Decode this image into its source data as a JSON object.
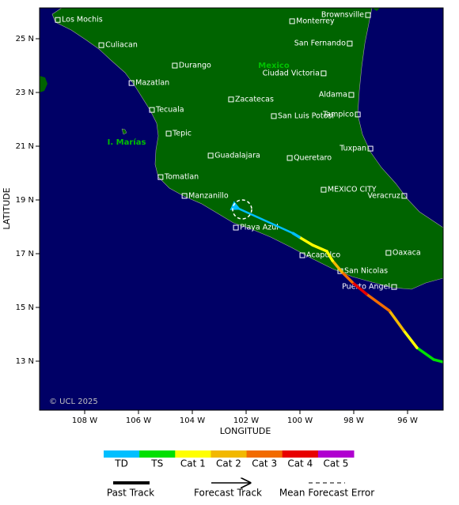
{
  "map": {
    "x_axis": {
      "label": "LONGITUDE",
      "ticks": [
        {
          "value": 108,
          "label": "108 W"
        },
        {
          "value": 106,
          "label": "106 W"
        },
        {
          "value": 104,
          "label": "104 W"
        },
        {
          "value": 102,
          "label": "102 W"
        },
        {
          "value": 100,
          "label": "100 W"
        },
        {
          "value": 98,
          "label": "98 W"
        },
        {
          "value": 96,
          "label": "96 W"
        }
      ]
    },
    "y_axis": {
      "label": "LATITUDE",
      "ticks": [
        {
          "value": 25,
          "label": "25 N"
        },
        {
          "value": 23,
          "label": "23 N"
        },
        {
          "value": 21,
          "label": "21 N"
        },
        {
          "value": 19,
          "label": "19 N"
        },
        {
          "value": 17,
          "label": "17 N"
        },
        {
          "value": 15,
          "label": "15 N"
        },
        {
          "value": 13,
          "label": "13 N"
        }
      ]
    },
    "regions": [
      {
        "label": "Mexico",
        "lon": 100.97,
        "lat": 24.0
      },
      {
        "label": "I. Marías",
        "lon": 106.44,
        "lat": 21.15
      }
    ],
    "cities": [
      {
        "name": "Los Mochis",
        "lon": 109.0,
        "lat": 25.7
      },
      {
        "name": "Culiacan",
        "lon": 107.38,
        "lat": 24.76
      },
      {
        "name": "Durango",
        "lon": 104.65,
        "lat": 24.0
      },
      {
        "name": "Mazatlan",
        "lon": 106.26,
        "lat": 23.35
      },
      {
        "name": "Tecuala",
        "lon": 105.5,
        "lat": 22.35
      },
      {
        "name": "Tepic",
        "lon": 104.88,
        "lat": 21.47
      },
      {
        "name": "Zacatecas",
        "lon": 102.56,
        "lat": 22.74
      },
      {
        "name": "San Luis Potosi",
        "lon": 100.97,
        "lat": 22.12
      },
      {
        "name": "Guadalajara",
        "lon": 103.32,
        "lat": 20.65
      },
      {
        "name": "Tomatlan",
        "lon": 105.18,
        "lat": 19.85
      },
      {
        "name": "Manzanillo",
        "lon": 104.29,
        "lat": 19.15
      },
      {
        "name": "Playa Azul",
        "lon": 102.38,
        "lat": 17.97
      },
      {
        "name": "Queretaro",
        "lon": 100.38,
        "lat": 20.56
      },
      {
        "name": "MEXICO CITY",
        "lon": 99.12,
        "lat": 19.38
      },
      {
        "name": "Veracruz",
        "lon": 96.12,
        "lat": 19.15
      },
      {
        "name": "Acapulco",
        "lon": 99.91,
        "lat": 16.94
      },
      {
        "name": "San Nicolas",
        "lon": 98.5,
        "lat": 16.35
      },
      {
        "name": "Puerto Angel",
        "lon": 96.5,
        "lat": 15.76
      },
      {
        "name": "Oaxaca",
        "lon": 96.71,
        "lat": 17.03
      },
      {
        "name": "Tuxpan",
        "lon": 97.38,
        "lat": 20.91
      },
      {
        "name": "Tampico",
        "lon": 97.85,
        "lat": 22.18
      },
      {
        "name": "Aldama",
        "lon": 98.09,
        "lat": 22.91
      },
      {
        "name": "Ciudad Victoria",
        "lon": 99.12,
        "lat": 23.71
      },
      {
        "name": "San Fernando",
        "lon": 98.15,
        "lat": 24.82
      },
      {
        "name": "Monterrey",
        "lon": 100.29,
        "lat": 25.65
      },
      {
        "name": "Brownsville",
        "lon": 97.47,
        "lat": 25.88
      }
    ],
    "track": [
      {
        "lon": 94.68,
        "lat": 12.97,
        "category": "TS"
      },
      {
        "lon": 95.03,
        "lat": 13.06,
        "category": "TS"
      },
      {
        "lon": 95.65,
        "lat": 13.5,
        "category": "Cat 1"
      },
      {
        "lon": 96.15,
        "lat": 14.15,
        "category": "Cat 2"
      },
      {
        "lon": 96.68,
        "lat": 14.88,
        "category": "Cat 3"
      },
      {
        "lon": 97.53,
        "lat": 15.5,
        "category": "Cat 4"
      },
      {
        "lon": 98.06,
        "lat": 15.94,
        "category": "Cat 3"
      },
      {
        "lon": 98.44,
        "lat": 16.32,
        "category": "Cat 2"
      },
      {
        "lon": 98.79,
        "lat": 16.74,
        "category": "Cat 1"
      },
      {
        "lon": 99.0,
        "lat": 17.09,
        "category": "Cat 1"
      },
      {
        "lon": 99.53,
        "lat": 17.32,
        "category": "Cat 1"
      },
      {
        "lon": 100.03,
        "lat": 17.62,
        "category": "TD"
      },
      {
        "lon": 100.26,
        "lat": 17.76,
        "category": "TD"
      },
      {
        "lon": 102.26,
        "lat": 18.67,
        "category": "TD"
      }
    ],
    "copyright": "© UCL 2025"
  },
  "legend": {
    "categories": [
      {
        "label": "TD",
        "color": "#00bfff"
      },
      {
        "label": "TS",
        "color": "#00e000"
      },
      {
        "label": "Cat 1",
        "color": "#ffff00"
      },
      {
        "label": "Cat 2",
        "color": "#f2b800"
      },
      {
        "label": "Cat 3",
        "color": "#f26b00"
      },
      {
        "label": "Cat 4",
        "color": "#e80000"
      },
      {
        "label": "Cat 5",
        "color": "#b000d0"
      }
    ],
    "tracks": [
      {
        "label": "Past Track"
      },
      {
        "label": "Forecast Track"
      },
      {
        "label": "Mean Forecast Error"
      }
    ]
  }
}
